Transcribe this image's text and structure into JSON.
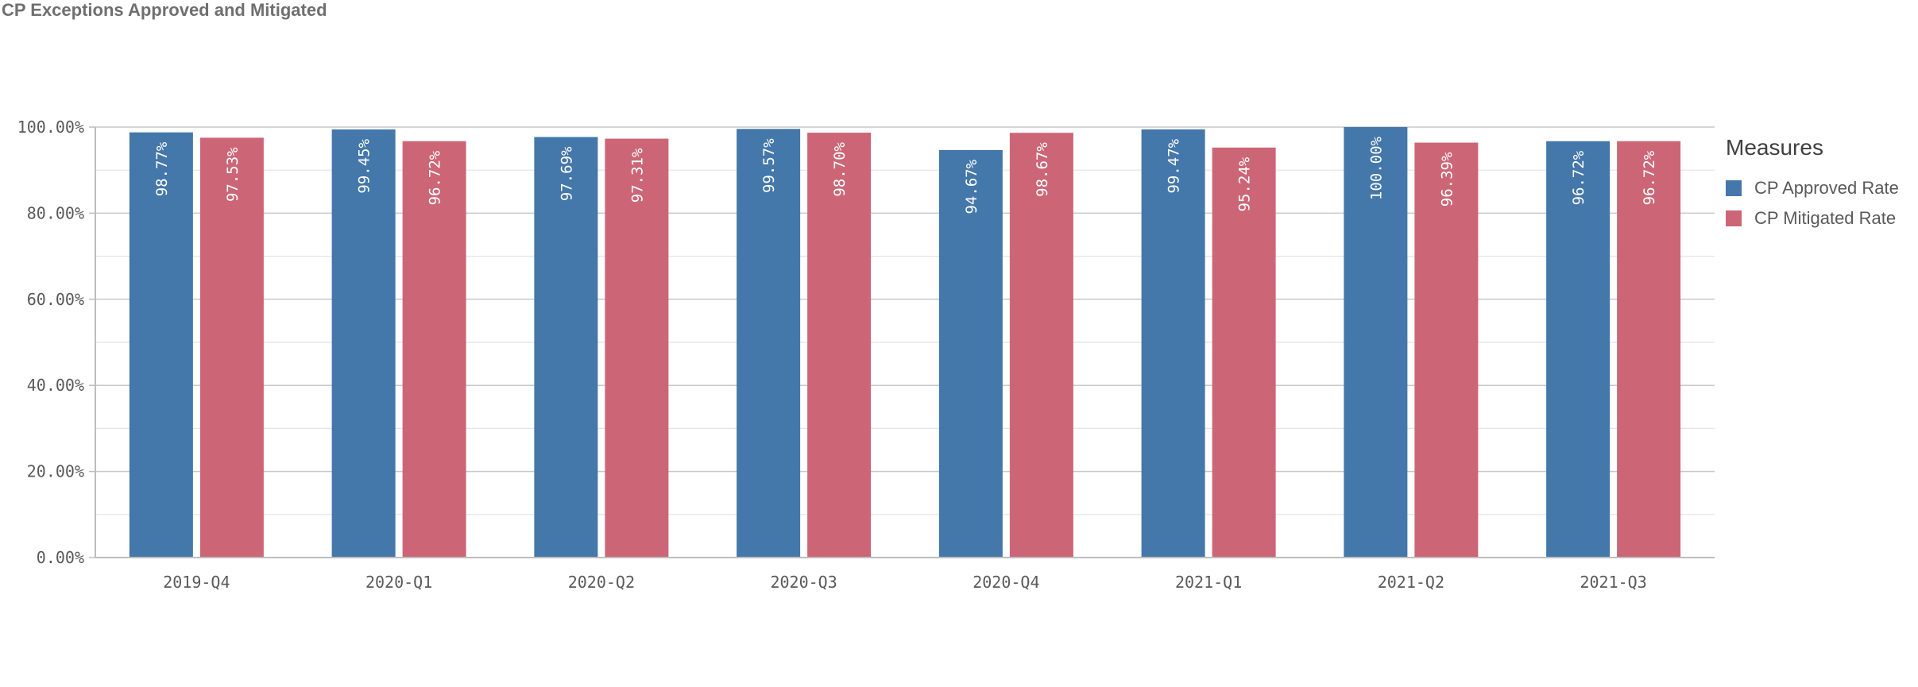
{
  "title": "CP Exceptions Approved and Mitigated",
  "legend": {
    "title": "Measures"
  },
  "chart_data": {
    "type": "bar",
    "title": "CP Exceptions Approved and Mitigated",
    "xlabel": "",
    "ylabel": "",
    "ylim": [
      0,
      100
    ],
    "yticks": [
      "0.00%",
      "20.00%",
      "40.00%",
      "60.00%",
      "80.00%",
      "100.00%"
    ],
    "categories": [
      "2019-Q4",
      "2020-Q1",
      "2020-Q2",
      "2020-Q3",
      "2020-Q4",
      "2021-Q1",
      "2021-Q2",
      "2021-Q3"
    ],
    "series": [
      {
        "name": "CP Approved Rate",
        "color": "#4477aa",
        "values": [
          98.77,
          99.45,
          97.69,
          99.57,
          94.67,
          99.47,
          100.0,
          96.72
        ],
        "labels": [
          "98.77%",
          "99.45%",
          "97.69%",
          "99.57%",
          "94.67%",
          "99.47%",
          "100.00%",
          "96.72%"
        ]
      },
      {
        "name": "CP Mitigated Rate",
        "color": "#cc6677",
        "values": [
          97.53,
          96.72,
          97.31,
          98.7,
          98.67,
          95.24,
          96.39,
          96.72
        ],
        "labels": [
          "97.53%",
          "96.72%",
          "97.31%",
          "98.70%",
          "98.67%",
          "95.24%",
          "96.39%",
          "96.72%"
        ]
      }
    ],
    "grid": true,
    "legend_position": "right"
  }
}
